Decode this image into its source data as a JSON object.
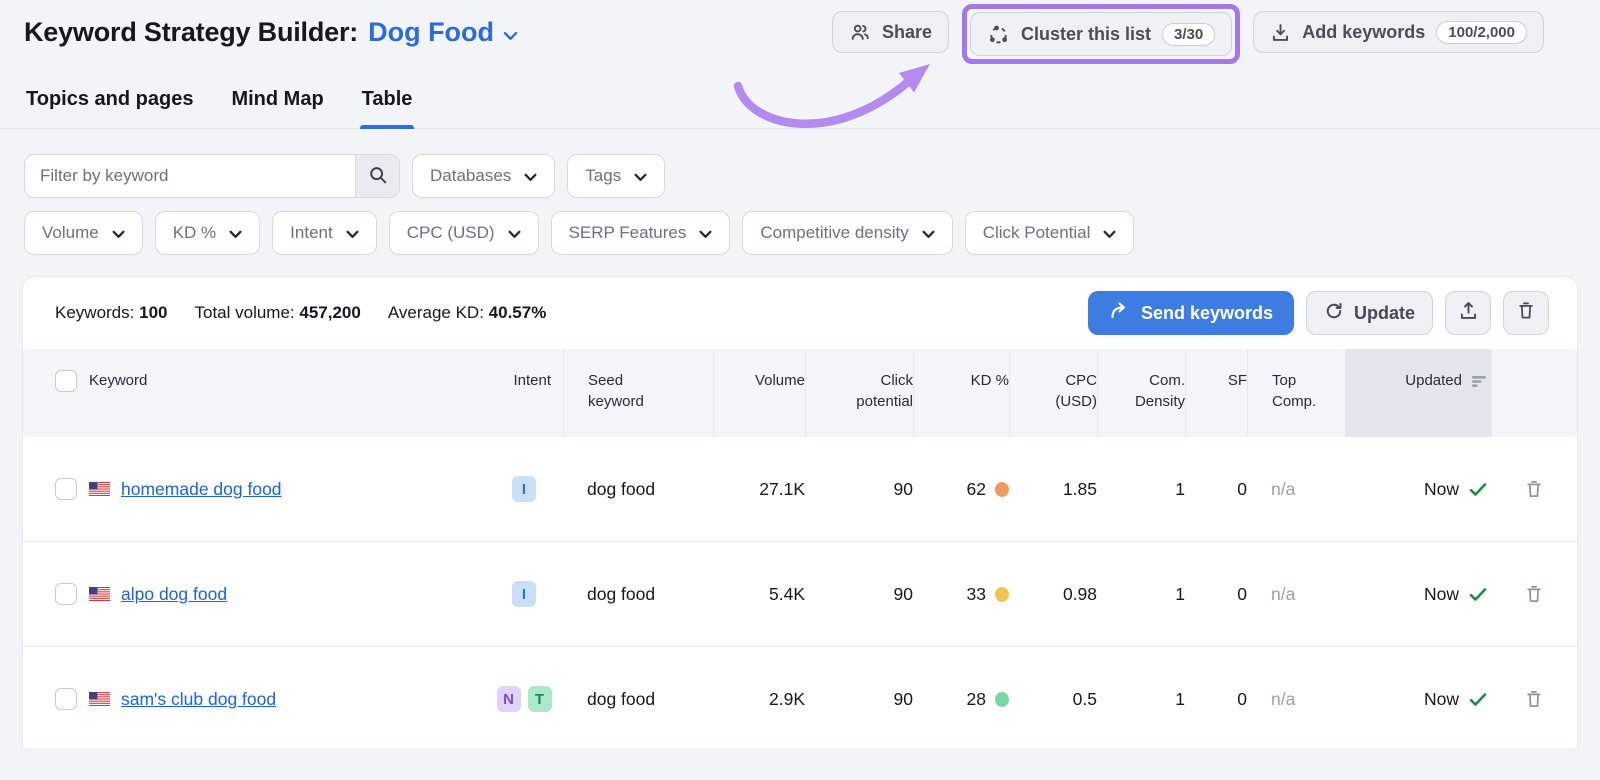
{
  "header": {
    "title": "Keyword Strategy Builder:",
    "project_name": "Dog Food",
    "share_label": "Share",
    "cluster_label": "Cluster this list",
    "cluster_count": "3/30",
    "add_keywords_label": "Add keywords",
    "add_keywords_count": "100/2,000"
  },
  "tabs": {
    "topics": "Topics and pages",
    "mindmap": "Mind Map",
    "table": "Table",
    "active_tab": "Table"
  },
  "filters": {
    "search_placeholder": "Filter by keyword",
    "databases": "Databases",
    "tags": "Tags",
    "chips": [
      "Volume",
      "KD %",
      "Intent",
      "CPC (USD)",
      "SERP Features",
      "Competitive density",
      "Click Potential"
    ]
  },
  "summary": {
    "keywords_label": "Keywords:",
    "keywords_value": "100",
    "total_volume_label": "Total volume:",
    "total_volume_value": "457,200",
    "average_kd_label": "Average KD:",
    "average_kd_value": "40.57%",
    "send_keywords_label": "Send keywords",
    "update_label": "Update"
  },
  "table": {
    "headers": {
      "keyword": "Keyword",
      "intent": "Intent",
      "seed": "Seed keyword",
      "volume": "Volume",
      "click_potential": "Click potential",
      "kd": "KD %",
      "cpc": "CPC (USD)",
      "com_density": "Com. Density",
      "sf": "SF",
      "top_comp": "Top Comp.",
      "updated": "Updated"
    },
    "rows": [
      {
        "keyword": "homemade dog food",
        "flag": "us",
        "intents": [
          {
            "label": "I",
            "bg": "#c8e0f8",
            "fg": "#2e6ed2"
          }
        ],
        "seed": "dog food",
        "volume": "27.1K",
        "click_potential": "90",
        "kd": "62",
        "kd_dot": "#ef9a5b",
        "cpc": "1.85",
        "com_density": "1",
        "sf": "0",
        "top_comp": "n/a",
        "updated": "Now"
      },
      {
        "keyword": "alpo dog food",
        "flag": "us",
        "intents": [
          {
            "label": "I",
            "bg": "#c8e0f8",
            "fg": "#2e6ed2"
          }
        ],
        "seed": "dog food",
        "volume": "5.4K",
        "click_potential": "90",
        "kd": "33",
        "kd_dot": "#f1c64f",
        "cpc": "0.98",
        "com_density": "1",
        "sf": "0",
        "top_comp": "n/a",
        "updated": "Now"
      },
      {
        "keyword": "sam's club dog food",
        "flag": "us",
        "intents": [
          {
            "label": "N",
            "bg": "#e0d4f9",
            "fg": "#7a4fd1"
          },
          {
            "label": "T",
            "bg": "#abe9ca",
            "fg": "#0f8a5f"
          }
        ],
        "seed": "dog food",
        "volume": "2.9K",
        "click_potential": "90",
        "kd": "28",
        "kd_dot": "#7cd7a6",
        "cpc": "0.5",
        "com_density": "1",
        "sf": "0",
        "top_comp": "n/a",
        "updated": "Now"
      }
    ]
  },
  "colors": {
    "accent_blue": "#3d7de2",
    "link_blue": "#1a64dc",
    "highlight_purple": "#a379ea",
    "arrow_purple": "#b18bef",
    "success_green": "#1f8a4d"
  }
}
